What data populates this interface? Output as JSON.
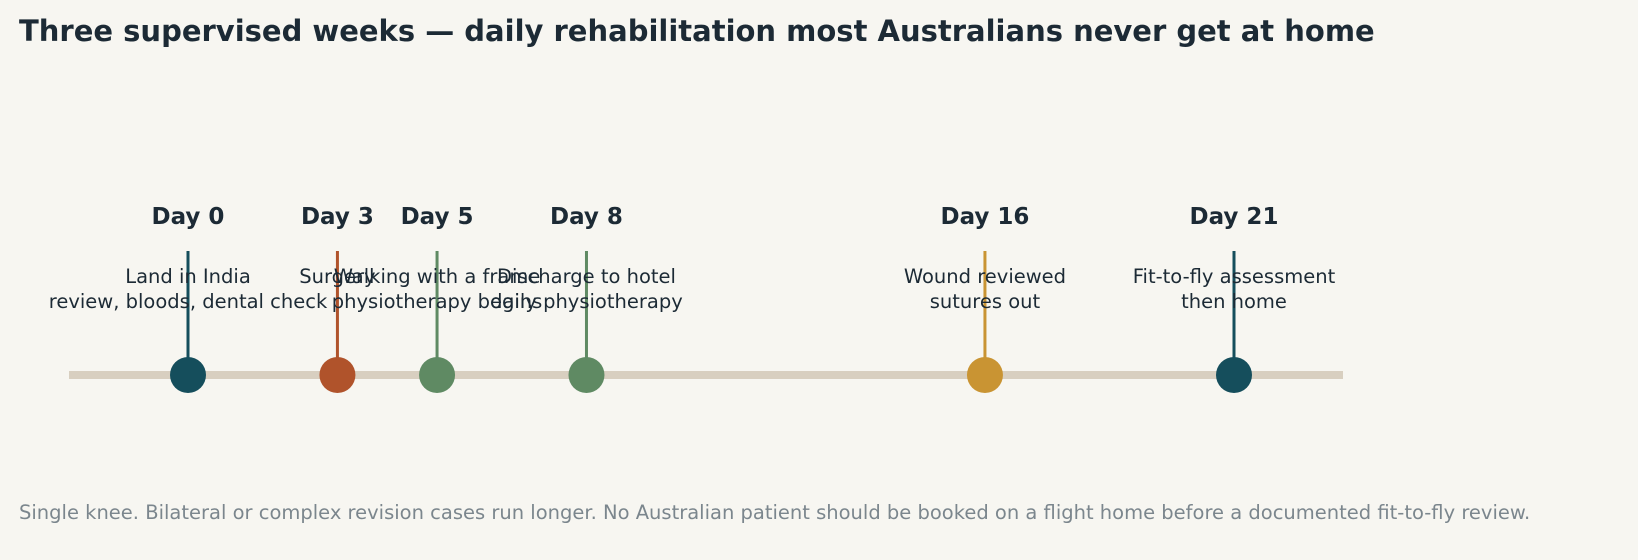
{
  "chart_data": {
    "type": "timeline",
    "title": "Three supervised weeks — daily rehabilitation most Australians never get at home",
    "footnote": "Single knee. Bilateral or complex revision cases run longer. No Australian patient should be booked on a flight home before a documented fit-to-fly review.",
    "x_unit": "day",
    "xlim": [
      -12,
      116
    ],
    "track_color": "#d8cfc0",
    "events": [
      {
        "day": 0,
        "label": "Day 0",
        "lines": [
          "Land in India",
          "review, bloods, dental check"
        ],
        "color": "#154e5c"
      },
      {
        "day": 3,
        "label": "Day 3",
        "lines": [
          "Surgery"
        ],
        "color": "#b0532b"
      },
      {
        "day": 5,
        "label": "Day 5",
        "lines": [
          "Walking with a frame",
          "physiotherapy begins"
        ],
        "color": "#5f8a63"
      },
      {
        "day": 8,
        "label": "Day 8",
        "lines": [
          "Discharge to hotel",
          "daily physiotherapy"
        ],
        "color": "#5f8a63"
      },
      {
        "day": 16,
        "label": "Day 16",
        "lines": [
          "Wound reviewed",
          "sutures out"
        ],
        "color": "#c99433"
      },
      {
        "day": 21,
        "label": "Day 21",
        "lines": [
          "Fit-to-fly assessment",
          "then home"
        ],
        "color": "#154e5c"
      }
    ]
  }
}
